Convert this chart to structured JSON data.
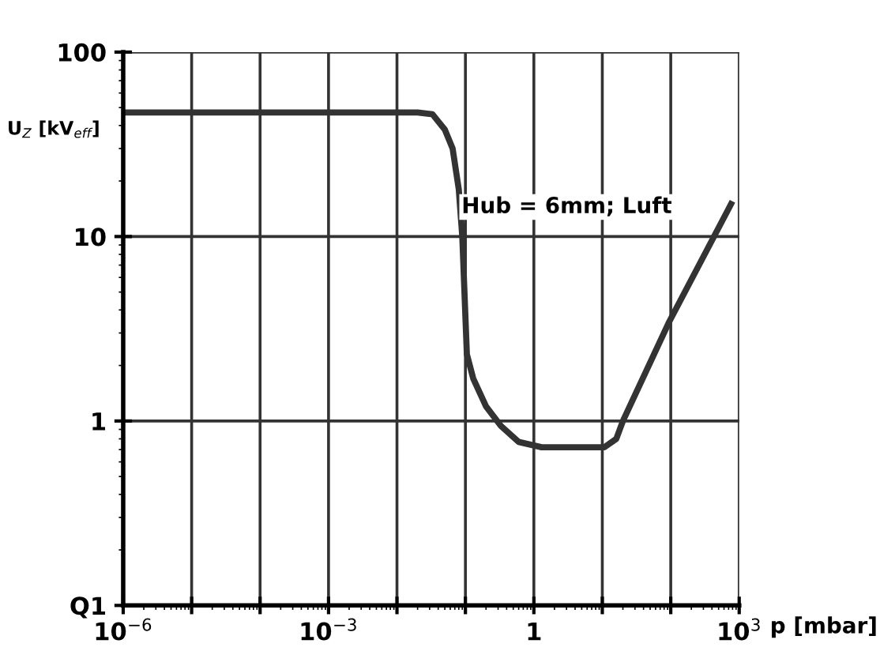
{
  "chart_data": {
    "type": "line",
    "xlabel": "p [mbar]",
    "ylabel": "U$_{Z}$ [kV$_{eff}$]",
    "annotations": [
      "Hub = 6mm; Luft"
    ],
    "log": "xy",
    "grid": true,
    "marker": "none",
    "line_style": "solid",
    "xlim": [
      1e-06,
      1000
    ],
    "ylim": [
      0.1,
      100
    ],
    "xticks": [
      {
        "value": 1e-06,
        "label": "10$^{−6}$"
      },
      {
        "value": 1e-05,
        "label": null
      },
      {
        "value": 0.0001,
        "label": null
      },
      {
        "value": 0.001,
        "label": "10$^{−3}$"
      },
      {
        "value": 0.01,
        "label": null
      },
      {
        "value": 0.1,
        "label": null
      },
      {
        "value": 1,
        "label": "1"
      },
      {
        "value": 10,
        "label": null
      },
      {
        "value": 100,
        "label": null
      },
      {
        "value": 1000,
        "label": "10$^{3}$"
      }
    ],
    "yticks": [
      {
        "value": 0.1,
        "label": "Q1"
      },
      1,
      10,
      100
    ],
    "series": [
      {
        "color": "#333333",
        "x": [
          1e-06,
          0.001,
          0.02,
          0.033,
          0.05,
          0.065,
          0.08,
          0.09,
          0.105,
          0.13,
          0.2,
          0.33,
          0.6,
          1.3,
          5,
          10.7,
          16,
          20,
          93,
          690,
          760
        ],
        "values": [
          47,
          47,
          47,
          46,
          38,
          30,
          18,
          10,
          2.3,
          1.7,
          1.2,
          0.94,
          0.77,
          0.72,
          0.72,
          0.72,
          0.8,
          1,
          3.4,
          14,
          15
        ]
      }
    ]
  }
}
